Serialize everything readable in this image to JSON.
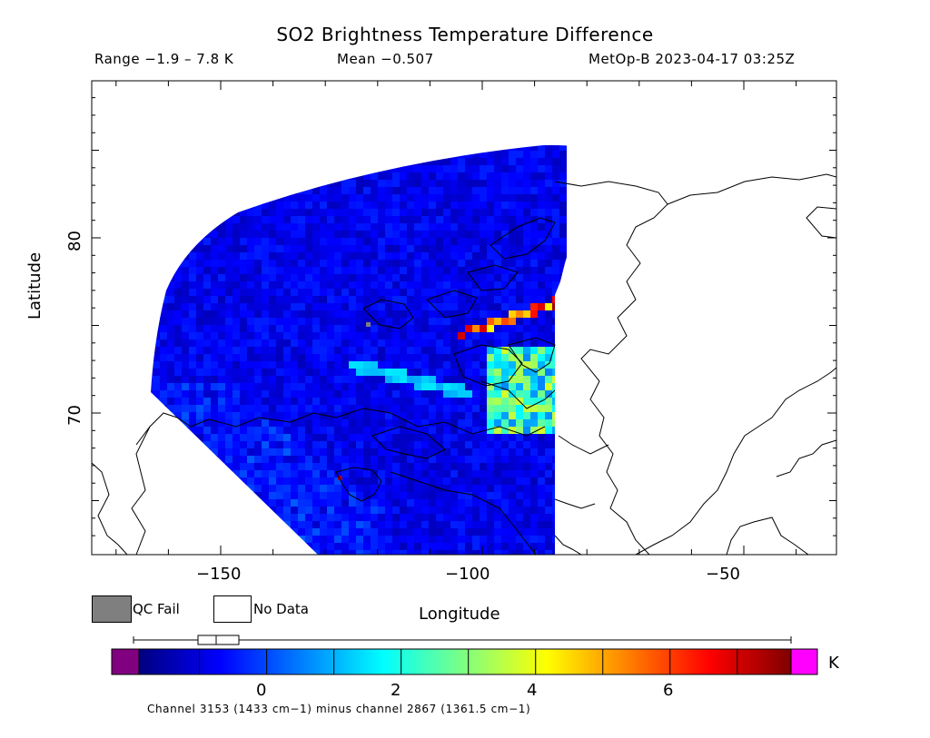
{
  "header": {
    "title": "SO2 Brightness Temperature Difference",
    "range": "Range −1.9 – 7.8 K",
    "mean": "Mean −0.507",
    "satellite_time": "MetOp-B 2023-04-17 03:25Z"
  },
  "axes": {
    "xlabel": "Longitude",
    "ylabel": "Latitude",
    "x_ticks": [
      "−150",
      "−100",
      "−50"
    ],
    "y_ticks": [
      "80",
      "70"
    ]
  },
  "legend": {
    "qc_fail_label": "QC Fail",
    "no_data_label": "No Data",
    "qc_fail_color": "#7f7f7f",
    "no_data_color": "#ffffff"
  },
  "colorbar": {
    "unit": "K",
    "ticks": [
      "0",
      "2",
      "4",
      "6"
    ],
    "under_color": "#800080",
    "over_color": "#ff00ff"
  },
  "footer": {
    "channel_note": "Channel 3153 (1433 cm−1) minus channel 2867 (1361.5 cm−1)"
  },
  "chart_data": {
    "type": "heatmap",
    "title": "SO2 Brightness Temperature Difference",
    "xlabel": "Longitude",
    "ylabel": "Latitude",
    "xlim": [
      -175,
      -15
    ],
    "ylim": [
      62,
      89
    ],
    "x_ticks": [
      -150,
      -100,
      -50
    ],
    "y_ticks": [
      70,
      80
    ],
    "colorbar_range": [
      -1.9,
      7.8
    ],
    "colorbar_ticks": [
      0,
      2,
      4,
      6
    ],
    "unit": "K",
    "swath_lon_range": [
      -165,
      -80
    ],
    "swath_lat_range": [
      62,
      85
    ],
    "background_value": -0.5,
    "features": [
      {
        "name": "Baffin Bay plume",
        "lon": [
          -103,
          -83
        ],
        "lat": [
          74.5,
          77
        ],
        "value": 6.5
      },
      {
        "name": "Canadian Archipelago enhancement",
        "lon": [
          -100,
          -85
        ],
        "lat": [
          69,
          74
        ],
        "value": 3.2
      },
      {
        "name": "Diagonal streak",
        "lon": [
          -125,
          -95
        ],
        "lat": [
          69.5,
          72.5
        ],
        "value": 1.5
      }
    ]
  }
}
